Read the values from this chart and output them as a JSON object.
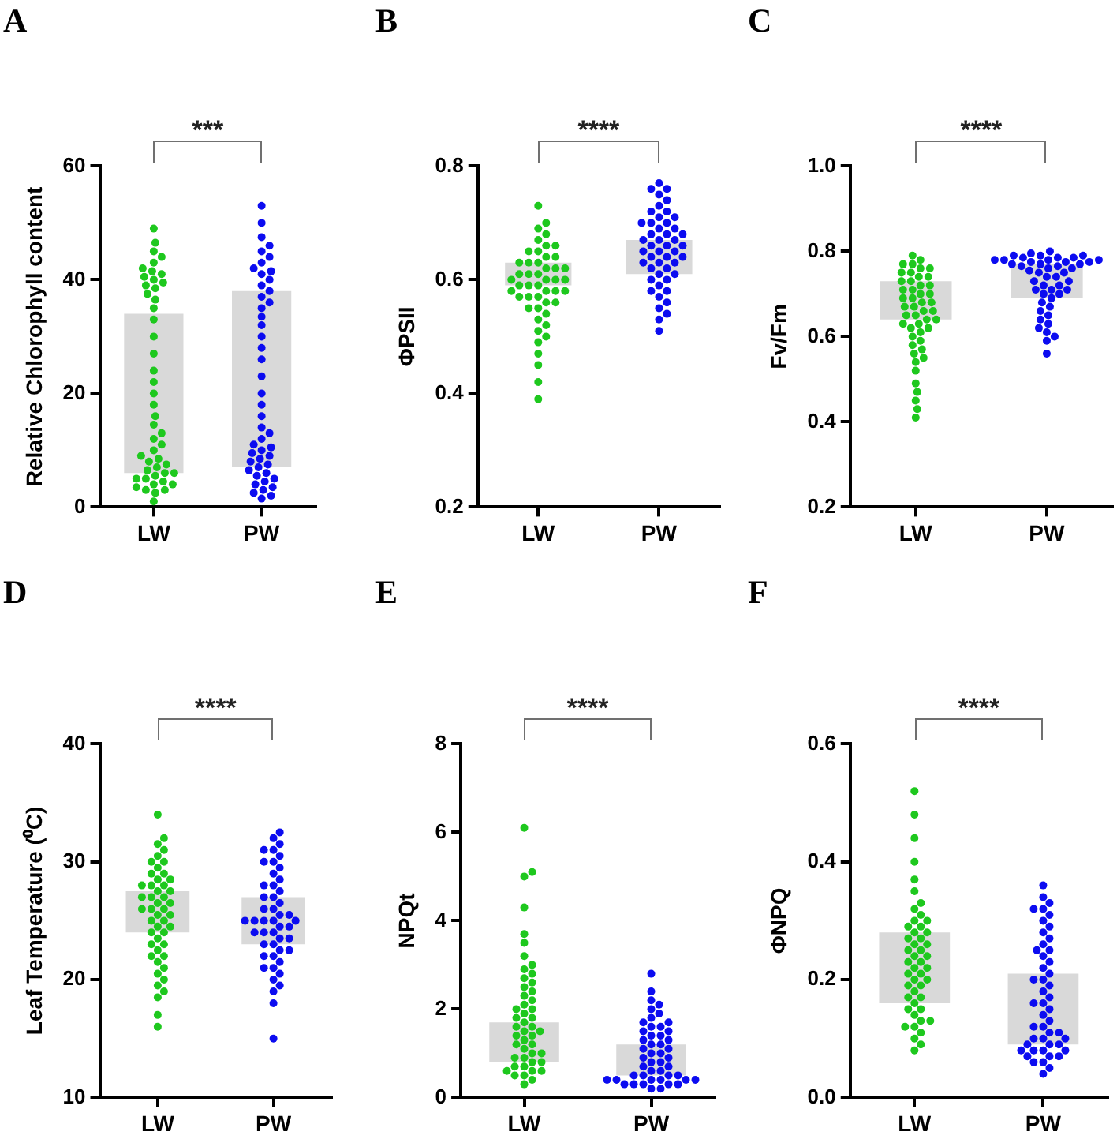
{
  "chart_data": [
    {
      "type": "bar",
      "title": "A",
      "ylabel": "Relative Chlorophyll content",
      "categories": [
        "LW",
        "PW"
      ],
      "ylim": [
        0,
        60
      ],
      "yticks": [
        0,
        20,
        40,
        60
      ],
      "annotations": [
        "***"
      ],
      "marker": "circle",
      "series": [
        {
          "type": "bar",
          "color": "#d9d9d9",
          "base": [
            6,
            7
          ],
          "values": [
            28,
            31
          ]
        },
        {
          "type": "scatter",
          "color": "#1ec81e",
          "x": [
            "LW",
            "LW",
            "LW",
            "LW",
            "LW",
            "LW",
            "LW",
            "LW",
            "LW",
            "LW",
            "LW",
            "LW",
            "LW",
            "LW",
            "LW",
            "LW",
            "LW",
            "LW",
            "LW",
            "LW",
            "LW",
            "LW",
            "LW",
            "LW",
            "LW",
            "LW",
            "LW",
            "LW",
            "LW",
            "LW",
            "LW",
            "LW",
            "LW",
            "LW",
            "LW",
            "LW",
            "LW",
            "LW",
            "LW",
            "LW",
            "LW",
            "LW",
            "LW",
            "LW",
            "LW",
            "LW",
            "LW",
            "LW"
          ],
          "values": [
            1,
            2.5,
            3,
            3,
            3.5,
            4,
            4,
            4.5,
            5,
            5,
            5.5,
            6,
            6,
            6.5,
            7,
            7.5,
            8,
            8.5,
            9,
            10,
            11,
            12,
            13,
            14.5,
            16,
            18,
            20,
            22,
            24,
            27,
            30,
            33,
            35,
            36.5,
            37.5,
            38.5,
            39,
            39.5,
            40,
            40.5,
            41,
            41.5,
            42,
            43,
            44,
            45,
            46.5,
            49
          ]
        },
        {
          "type": "scatter",
          "color": "#0c0cf0",
          "x": [
            "PW",
            "PW",
            "PW",
            "PW",
            "PW",
            "PW",
            "PW",
            "PW",
            "PW",
            "PW",
            "PW",
            "PW",
            "PW",
            "PW",
            "PW",
            "PW",
            "PW",
            "PW",
            "PW",
            "PW",
            "PW",
            "PW",
            "PW",
            "PW",
            "PW",
            "PW",
            "PW",
            "PW",
            "PW",
            "PW",
            "PW",
            "PW",
            "PW",
            "PW",
            "PW",
            "PW",
            "PW",
            "PW",
            "PW",
            "PW",
            "PW",
            "PW",
            "PW",
            "PW",
            "PW",
            "PW",
            "PW",
            "PW"
          ],
          "values": [
            1.5,
            2,
            2.5,
            3,
            3.5,
            4,
            4.5,
            5,
            5.5,
            6,
            6.5,
            7,
            7.5,
            8,
            8.5,
            9,
            9.5,
            10,
            10.5,
            11,
            12,
            13,
            14,
            16,
            18,
            20,
            23,
            26,
            28,
            30,
            32,
            33.5,
            35,
            36,
            37,
            38,
            39,
            40,
            41,
            41.5,
            42,
            43,
            44,
            45,
            46,
            47.5,
            50,
            53
          ]
        }
      ]
    },
    {
      "type": "bar",
      "title": "B",
      "ylabel": "ΦPSII",
      "categories": [
        "LW",
        "PW"
      ],
      "ylim": [
        0.2,
        0.8
      ],
      "yticks": [
        0.2,
        0.4,
        0.6,
        0.8
      ],
      "annotations": [
        "****"
      ],
      "marker": "circle",
      "series": [
        {
          "type": "bar",
          "color": "#d9d9d9",
          "base": [
            0.59,
            0.61
          ],
          "values": [
            0.04,
            0.06
          ]
        },
        {
          "type": "scatter",
          "color": "#1ec81e",
          "x": [
            "LW",
            "LW",
            "LW",
            "LW",
            "LW",
            "LW",
            "LW",
            "LW",
            "LW",
            "LW",
            "LW",
            "LW",
            "LW",
            "LW",
            "LW",
            "LW",
            "LW",
            "LW",
            "LW",
            "LW",
            "LW",
            "LW",
            "LW",
            "LW",
            "LW",
            "LW",
            "LW",
            "LW",
            "LW",
            "LW",
            "LW",
            "LW",
            "LW",
            "LW",
            "LW",
            "LW",
            "LW",
            "LW",
            "LW",
            "LW",
            "LW",
            "LW",
            "LW",
            "LW",
            "LW",
            "LW",
            "LW",
            "LW"
          ],
          "values": [
            0.39,
            0.42,
            0.45,
            0.47,
            0.49,
            0.5,
            0.51,
            0.52,
            0.53,
            0.54,
            0.55,
            0.55,
            0.56,
            0.56,
            0.57,
            0.57,
            0.57,
            0.58,
            0.58,
            0.58,
            0.58,
            0.59,
            0.59,
            0.59,
            0.6,
            0.6,
            0.6,
            0.6,
            0.61,
            0.61,
            0.61,
            0.62,
            0.62,
            0.62,
            0.63,
            0.63,
            0.63,
            0.64,
            0.64,
            0.65,
            0.65,
            0.66,
            0.66,
            0.67,
            0.68,
            0.69,
            0.7,
            0.73
          ]
        },
        {
          "type": "scatter",
          "color": "#0c0cf0",
          "x": [
            "PW",
            "PW",
            "PW",
            "PW",
            "PW",
            "PW",
            "PW",
            "PW",
            "PW",
            "PW",
            "PW",
            "PW",
            "PW",
            "PW",
            "PW",
            "PW",
            "PW",
            "PW",
            "PW",
            "PW",
            "PW",
            "PW",
            "PW",
            "PW",
            "PW",
            "PW",
            "PW",
            "PW",
            "PW",
            "PW",
            "PW",
            "PW",
            "PW",
            "PW",
            "PW",
            "PW",
            "PW",
            "PW",
            "PW",
            "PW",
            "PW",
            "PW",
            "PW",
            "PW",
            "PW",
            "PW",
            "PW",
            "PW"
          ],
          "values": [
            0.51,
            0.53,
            0.54,
            0.55,
            0.56,
            0.57,
            0.58,
            0.58,
            0.59,
            0.6,
            0.6,
            0.61,
            0.61,
            0.62,
            0.62,
            0.63,
            0.63,
            0.63,
            0.64,
            0.64,
            0.64,
            0.65,
            0.65,
            0.65,
            0.66,
            0.66,
            0.66,
            0.67,
            0.67,
            0.67,
            0.68,
            0.68,
            0.68,
            0.69,
            0.69,
            0.7,
            0.7,
            0.7,
            0.71,
            0.71,
            0.72,
            0.72,
            0.73,
            0.74,
            0.75,
            0.76,
            0.76,
            0.77
          ]
        }
      ]
    },
    {
      "type": "bar",
      "title": "C",
      "ylabel": "Fv/Fm",
      "categories": [
        "LW",
        "PW"
      ],
      "ylim": [
        0.2,
        1
      ],
      "yticks": [
        0.2,
        0.4,
        0.6,
        0.8,
        {
          "value": 1,
          "label": "1.0"
        }
      ],
      "annotations": [
        "****"
      ],
      "marker": "circle",
      "series": [
        {
          "type": "bar",
          "color": "#d9d9d9",
          "base": [
            0.64,
            0.69
          ],
          "values": [
            0.09,
            0.08
          ]
        },
        {
          "type": "scatter",
          "color": "#1ec81e",
          "x": [
            "LW",
            "LW",
            "LW",
            "LW",
            "LW",
            "LW",
            "LW",
            "LW",
            "LW",
            "LW",
            "LW",
            "LW",
            "LW",
            "LW",
            "LW",
            "LW",
            "LW",
            "LW",
            "LW",
            "LW",
            "LW",
            "LW",
            "LW",
            "LW",
            "LW",
            "LW",
            "LW",
            "LW",
            "LW",
            "LW",
            "LW",
            "LW",
            "LW",
            "LW",
            "LW",
            "LW",
            "LW",
            "LW",
            "LW",
            "LW",
            "LW",
            "LW",
            "LW",
            "LW",
            "LW",
            "LW",
            "LW",
            "LW"
          ],
          "values": [
            0.41,
            0.43,
            0.45,
            0.47,
            0.49,
            0.52,
            0.54,
            0.55,
            0.56,
            0.57,
            0.58,
            0.59,
            0.6,
            0.61,
            0.62,
            0.62,
            0.63,
            0.63,
            0.64,
            0.64,
            0.65,
            0.65,
            0.66,
            0.66,
            0.67,
            0.67,
            0.68,
            0.68,
            0.69,
            0.69,
            0.7,
            0.7,
            0.71,
            0.71,
            0.72,
            0.72,
            0.73,
            0.73,
            0.74,
            0.74,
            0.75,
            0.75,
            0.76,
            0.76,
            0.77,
            0.77,
            0.78,
            0.79
          ]
        },
        {
          "type": "scatter",
          "color": "#0c0cf0",
          "x": [
            "PW",
            "PW",
            "PW",
            "PW",
            "PW",
            "PW",
            "PW",
            "PW",
            "PW",
            "PW",
            "PW",
            "PW",
            "PW",
            "PW",
            "PW",
            "PW",
            "PW",
            "PW",
            "PW",
            "PW",
            "PW",
            "PW",
            "PW",
            "PW",
            "PW",
            "PW",
            "PW",
            "PW",
            "PW",
            "PW",
            "PW",
            "PW",
            "PW",
            "PW",
            "PW",
            "PW",
            "PW",
            "PW",
            "PW",
            "PW",
            "PW",
            "PW",
            "PW",
            "PW",
            "PW",
            "PW",
            "PW",
            "PW"
          ],
          "values": [
            0.56,
            0.59,
            0.6,
            0.61,
            0.62,
            0.63,
            0.64,
            0.65,
            0.66,
            0.67,
            0.68,
            0.69,
            0.7,
            0.7,
            0.71,
            0.71,
            0.71,
            0.72,
            0.72,
            0.73,
            0.73,
            0.74,
            0.74,
            0.75,
            0.75,
            0.755,
            0.76,
            0.76,
            0.765,
            0.765,
            0.77,
            0.77,
            0.77,
            0.775,
            0.775,
            0.775,
            0.78,
            0.78,
            0.78,
            0.78,
            0.785,
            0.785,
            0.785,
            0.79,
            0.79,
            0.79,
            0.795,
            0.8
          ]
        }
      ]
    },
    {
      "type": "bar",
      "title": "D",
      "ylabel": "Leaf Temperature (⁰C)",
      "categories": [
        "LW",
        "PW"
      ],
      "ylim": [
        10,
        40
      ],
      "yticks": [
        10,
        20,
        30,
        40
      ],
      "annotations": [
        "****"
      ],
      "marker": "circle",
      "series": [
        {
          "type": "bar",
          "color": "#d9d9d9",
          "base": [
            24,
            23
          ],
          "values": [
            3.5,
            4
          ]
        },
        {
          "type": "scatter",
          "color": "#1ec81e",
          "x": [
            "LW",
            "LW",
            "LW",
            "LW",
            "LW",
            "LW",
            "LW",
            "LW",
            "LW",
            "LW",
            "LW",
            "LW",
            "LW",
            "LW",
            "LW",
            "LW",
            "LW",
            "LW",
            "LW",
            "LW",
            "LW",
            "LW",
            "LW",
            "LW",
            "LW",
            "LW",
            "LW",
            "LW",
            "LW",
            "LW",
            "LW",
            "LW",
            "LW",
            "LW",
            "LW",
            "LW",
            "LW",
            "LW",
            "LW",
            "LW",
            "LW",
            "LW",
            "LW",
            "LW",
            "LW",
            "LW",
            "LW",
            "LW"
          ],
          "values": [
            16,
            17,
            18.5,
            19,
            19.5,
            20,
            20.5,
            21,
            21.5,
            22,
            22,
            22.5,
            23,
            23,
            23.5,
            24,
            24,
            24.5,
            24.5,
            25,
            25,
            25.5,
            25.5,
            26,
            26,
            26,
            26.5,
            26.5,
            27,
            27,
            27,
            27.5,
            27.5,
            28,
            28,
            28,
            28.5,
            28.5,
            29,
            29,
            29.5,
            30,
            30,
            30.5,
            31,
            31.5,
            32,
            34
          ]
        },
        {
          "type": "scatter",
          "color": "#0c0cf0",
          "x": [
            "PW",
            "PW",
            "PW",
            "PW",
            "PW",
            "PW",
            "PW",
            "PW",
            "PW",
            "PW",
            "PW",
            "PW",
            "PW",
            "PW",
            "PW",
            "PW",
            "PW",
            "PW",
            "PW",
            "PW",
            "PW",
            "PW",
            "PW",
            "PW",
            "PW",
            "PW",
            "PW",
            "PW",
            "PW",
            "PW",
            "PW",
            "PW",
            "PW",
            "PW",
            "PW",
            "PW",
            "PW",
            "PW",
            "PW",
            "PW",
            "PW",
            "PW",
            "PW",
            "PW",
            "PW",
            "PW",
            "PW",
            "PW"
          ],
          "values": [
            15,
            18,
            19,
            19.5,
            20,
            20.5,
            21,
            21,
            21.5,
            22,
            22,
            22.5,
            22.5,
            23,
            23,
            23.5,
            23.5,
            24,
            24,
            24,
            24.5,
            24.5,
            25,
            25,
            25,
            25,
            25,
            25.5,
            25.5,
            26,
            26,
            26.5,
            27,
            27,
            27.5,
            28,
            28,
            28.5,
            29,
            29.5,
            30,
            30,
            30.5,
            31,
            31,
            31.5,
            32,
            32.5
          ]
        }
      ]
    },
    {
      "type": "bar",
      "title": "E",
      "ylabel": "NPQt",
      "categories": [
        "LW",
        "PW"
      ],
      "ylim": [
        0,
        8
      ],
      "yticks": [
        0,
        2,
        4,
        6,
        8
      ],
      "annotations": [
        "****"
      ],
      "marker": "circle",
      "series": [
        {
          "type": "bar",
          "color": "#d9d9d9",
          "base": [
            0.8,
            0.5
          ],
          "values": [
            0.9,
            0.7
          ]
        },
        {
          "type": "scatter",
          "color": "#1ec81e",
          "x": [
            "LW",
            "LW",
            "LW",
            "LW",
            "LW",
            "LW",
            "LW",
            "LW",
            "LW",
            "LW",
            "LW",
            "LW",
            "LW",
            "LW",
            "LW",
            "LW",
            "LW",
            "LW",
            "LW",
            "LW",
            "LW",
            "LW",
            "LW",
            "LW",
            "LW",
            "LW",
            "LW",
            "LW",
            "LW",
            "LW",
            "LW",
            "LW",
            "LW",
            "LW",
            "LW",
            "LW",
            "LW",
            "LW",
            "LW",
            "LW",
            "LW",
            "LW",
            "LW",
            "LW",
            "LW",
            "LW",
            "LW",
            "LW"
          ],
          "values": [
            0.3,
            0.4,
            0.5,
            0.5,
            0.6,
            0.6,
            0.6,
            0.7,
            0.7,
            0.8,
            0.8,
            0.9,
            0.9,
            1,
            1,
            1.1,
            1.2,
            1.2,
            1.3,
            1.4,
            1.4,
            1.5,
            1.5,
            1.6,
            1.6,
            1.7,
            1.8,
            1.8,
            1.9,
            2,
            2,
            2.1,
            2.2,
            2.3,
            2.4,
            2.5,
            2.6,
            2.7,
            2.8,
            2.9,
            3,
            3.2,
            3.5,
            3.7,
            4.3,
            5,
            5.1,
            6.1
          ]
        },
        {
          "type": "scatter",
          "color": "#0c0cf0",
          "x": [
            "PW",
            "PW",
            "PW",
            "PW",
            "PW",
            "PW",
            "PW",
            "PW",
            "PW",
            "PW",
            "PW",
            "PW",
            "PW",
            "PW",
            "PW",
            "PW",
            "PW",
            "PW",
            "PW",
            "PW",
            "PW",
            "PW",
            "PW",
            "PW",
            "PW",
            "PW",
            "PW",
            "PW",
            "PW",
            "PW",
            "PW",
            "PW",
            "PW",
            "PW",
            "PW",
            "PW",
            "PW",
            "PW",
            "PW",
            "PW",
            "PW",
            "PW",
            "PW",
            "PW",
            "PW",
            "PW",
            "PW",
            "PW"
          ],
          "values": [
            0.2,
            0.2,
            0.3,
            0.3,
            0.3,
            0.3,
            0.3,
            0.4,
            0.4,
            0.4,
            0.4,
            0.4,
            0.4,
            0.5,
            0.5,
            0.5,
            0.5,
            0.6,
            0.6,
            0.7,
            0.7,
            0.8,
            0.8,
            0.9,
            0.9,
            1,
            1,
            1.1,
            1.1,
            1.2,
            1.2,
            1.3,
            1.3,
            1.4,
            1.4,
            1.5,
            1.5,
            1.6,
            1.6,
            1.7,
            1.7,
            1.8,
            1.9,
            2,
            2.1,
            2.2,
            2.4,
            2.8
          ]
        }
      ]
    },
    {
      "type": "bar",
      "title": "F",
      "ylabel": "ΦNPQ",
      "categories": [
        "LW",
        "PW"
      ],
      "ylim": [
        0,
        0.6
      ],
      "yticks": [
        {
          "value": 0,
          "label": "0.0"
        },
        0.2,
        0.4,
        0.6
      ],
      "annotations": [
        "****"
      ],
      "marker": "circle",
      "series": [
        {
          "type": "bar",
          "color": "#d9d9d9",
          "base": [
            0.16,
            0.09
          ],
          "values": [
            0.12,
            0.12
          ]
        },
        {
          "type": "scatter",
          "color": "#1ec81e",
          "x": [
            "LW",
            "LW",
            "LW",
            "LW",
            "LW",
            "LW",
            "LW",
            "LW",
            "LW",
            "LW",
            "LW",
            "LW",
            "LW",
            "LW",
            "LW",
            "LW",
            "LW",
            "LW",
            "LW",
            "LW",
            "LW",
            "LW",
            "LW",
            "LW",
            "LW",
            "LW",
            "LW",
            "LW",
            "LW",
            "LW",
            "LW",
            "LW",
            "LW",
            "LW",
            "LW",
            "LW",
            "LW",
            "LW",
            "LW",
            "LW",
            "LW",
            "LW",
            "LW",
            "LW",
            "LW",
            "LW",
            "LW",
            "LW"
          ],
          "values": [
            0.08,
            0.09,
            0.1,
            0.11,
            0.12,
            0.12,
            0.13,
            0.13,
            0.14,
            0.15,
            0.15,
            0.16,
            0.17,
            0.17,
            0.18,
            0.19,
            0.19,
            0.2,
            0.2,
            0.21,
            0.21,
            0.22,
            0.22,
            0.23,
            0.23,
            0.24,
            0.24,
            0.25,
            0.25,
            0.26,
            0.26,
            0.27,
            0.27,
            0.28,
            0.28,
            0.29,
            0.29,
            0.3,
            0.3,
            0.31,
            0.32,
            0.33,
            0.35,
            0.37,
            0.4,
            0.44,
            0.48,
            0.52
          ]
        },
        {
          "type": "scatter",
          "color": "#0c0cf0",
          "x": [
            "PW",
            "PW",
            "PW",
            "PW",
            "PW",
            "PW",
            "PW",
            "PW",
            "PW",
            "PW",
            "PW",
            "PW",
            "PW",
            "PW",
            "PW",
            "PW",
            "PW",
            "PW",
            "PW",
            "PW",
            "PW",
            "PW",
            "PW",
            "PW",
            "PW",
            "PW",
            "PW",
            "PW",
            "PW",
            "PW",
            "PW",
            "PW",
            "PW",
            "PW",
            "PW",
            "PW",
            "PW",
            "PW",
            "PW",
            "PW",
            "PW",
            "PW",
            "PW",
            "PW",
            "PW",
            "PW",
            "PW",
            "PW"
          ],
          "values": [
            0.04,
            0.05,
            0.06,
            0.06,
            0.07,
            0.07,
            0.07,
            0.08,
            0.08,
            0.08,
            0.08,
            0.09,
            0.09,
            0.09,
            0.1,
            0.1,
            0.1,
            0.11,
            0.11,
            0.12,
            0.12,
            0.13,
            0.14,
            0.15,
            0.16,
            0.16,
            0.17,
            0.18,
            0.19,
            0.2,
            0.2,
            0.21,
            0.22,
            0.23,
            0.24,
            0.25,
            0.25,
            0.26,
            0.27,
            0.28,
            0.29,
            0.3,
            0.31,
            0.32,
            0.32,
            0.33,
            0.34,
            0.36
          ]
        }
      ]
    }
  ]
}
